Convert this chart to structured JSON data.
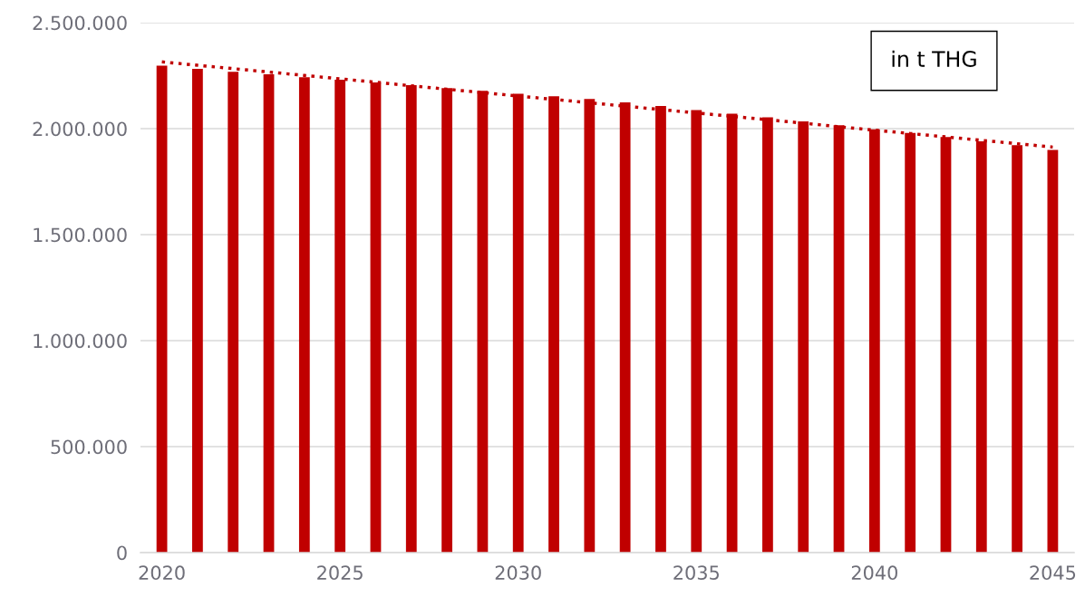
{
  "chart_data": {
    "type": "bar",
    "categories": [
      "2020",
      null,
      null,
      null,
      null,
      "2025",
      null,
      null,
      null,
      null,
      "2030",
      null,
      null,
      null,
      null,
      "2035",
      null,
      null,
      null,
      null,
      "2040",
      null,
      null,
      null,
      null,
      "2045"
    ],
    "series": [
      {
        "color": "#c00000",
        "values": [
          2297000,
          2282000,
          2268000,
          2256000,
          2242000,
          2231000,
          2218000,
          2205000,
          2191000,
          2178000,
          2164000,
          2153000,
          2140000,
          2124000,
          2107000,
          2088000,
          2070000,
          2053000,
          2034000,
          2016000,
          1997000,
          1980000,
          1960000,
          1940000,
          1922000,
          1900000
        ]
      },
      {
        "type": "line",
        "color": "#c00000",
        "line_style": "dotted",
        "values": [
          2315000,
          2299000,
          2283000,
          2267000,
          2251000,
          2235000,
          2219000,
          2202000,
          2186000,
          2170000,
          2154000,
          2138000,
          2122000,
          2106000,
          2090000,
          2074000,
          2058000,
          2042000,
          2026000,
          2009000,
          1993000,
          1977000,
          1961000,
          1945000,
          1929000,
          1913000
        ]
      }
    ],
    "ylim": [
      0,
      2500000
    ],
    "yticks": [
      0,
      {
        "value": 500000,
        "label": "500.000"
      },
      {
        "value": 1000000,
        "label": "1.000.000"
      },
      {
        "value": 1500000,
        "label": "1.500.000"
      },
      {
        "value": 2000000,
        "label": "2.000.000"
      },
      {
        "value": 2500000,
        "label": "2.500.000"
      }
    ],
    "grid": "y",
    "annotations": [
      "in t THG"
    ]
  }
}
